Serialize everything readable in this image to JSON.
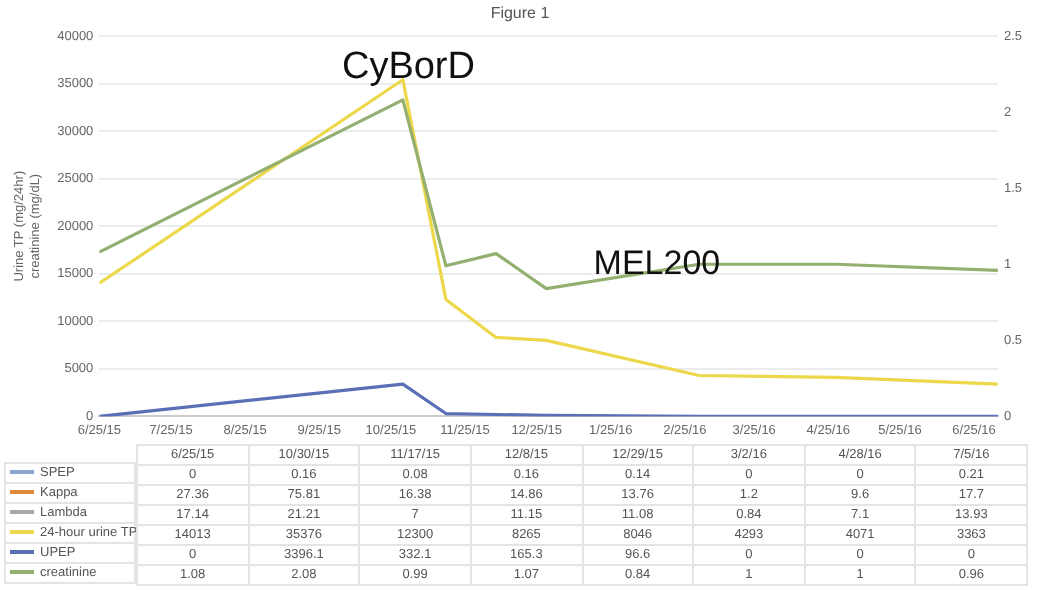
{
  "chart_data": [
    {
      "type": "line",
      "title": "Figure 1",
      "ylabel": "Urine TP (mg/24hr)\ncreatinine (mg/dL)",
      "x": [
        "2015-06-25",
        "2015-10-30",
        "2015-11-17",
        "2015-12-08",
        "2015-12-29",
        "2016-03-02",
        "2016-04-28",
        "2016-07-05"
      ],
      "series": [
        {
          "name": "SPEP",
          "color": "#8ea6cf",
          "values": [
            null,
            null,
            null,
            null,
            null,
            null,
            null,
            null
          ]
        },
        {
          "name": "Kappa",
          "color": "#e0893a",
          "values": [
            null,
            null,
            null,
            null,
            null,
            null,
            null,
            null
          ]
        },
        {
          "name": "Lambda",
          "color": "#a8a8a8",
          "values": [
            null,
            null,
            null,
            null,
            null,
            null,
            null,
            null
          ]
        },
        {
          "name": "24-hour urine TP",
          "color": "#ecd84a",
          "values": [
            14000,
            35400,
            12300,
            8300,
            8000,
            4300,
            4100,
            3400
          ]
        },
        {
          "name": "UPEP",
          "color": "#5a6fb5",
          "values": [
            0,
            3400,
            300,
            200,
            100,
            0,
            0,
            0
          ]
        },
        {
          "name": "creatinine",
          "color": "#93b070",
          "axis": "y2",
          "values": [
            1.08,
            2.08,
            0.99,
            1.07,
            0.84,
            1,
            1,
            0.96
          ]
        }
      ],
      "xlim": [
        "2015-06-25",
        "2016-07-05"
      ],
      "xticks": [
        {
          "value": "2015-06-25",
          "label": "6/25/15"
        },
        {
          "value": "2015-07-25",
          "label": "7/25/15"
        },
        {
          "value": "2015-08-25",
          "label": "8/25/15"
        },
        {
          "value": "2015-09-25",
          "label": "9/25/15"
        },
        {
          "value": "2015-10-25",
          "label": "10/25/15"
        },
        {
          "value": "2015-11-25",
          "label": "11/25/15"
        },
        {
          "value": "2015-12-25",
          "label": "12/25/15"
        },
        {
          "value": "2016-01-25",
          "label": "1/25/16"
        },
        {
          "value": "2016-02-25",
          "label": "2/25/16"
        },
        {
          "value": "2016-03-25",
          "label": "3/25/16"
        },
        {
          "value": "2016-04-25",
          "label": "4/25/16"
        },
        {
          "value": "2016-05-25",
          "label": "5/25/16"
        },
        {
          "value": "2016-06-25",
          "label": "6/25/16"
        }
      ],
      "ylim": [
        0,
        40000
      ],
      "yticks": [
        0,
        5000,
        10000,
        15000,
        20000,
        25000,
        30000,
        35000,
        40000
      ],
      "y2lim": [
        0,
        2.5
      ],
      "y2ticks": [
        0,
        0.5,
        1,
        1.5,
        2,
        2.5
      ],
      "grid": "y",
      "legend": "bottom",
      "marker": "none",
      "line_style": "solid",
      "annotations": [
        "CyBorD",
        "MEL200"
      ]
    },
    {
      "type": "other",
      "categories": [
        "6/25/15",
        "10/30/15",
        "11/17/15",
        "12/8/15",
        "12/29/15",
        "3/2/16",
        "4/28/16",
        "7/5/16"
      ],
      "data_labels": true,
      "series": [
        {
          "values": [
            0,
            0.16,
            0.08,
            0.16,
            0.14,
            0,
            0,
            0.21
          ]
        },
        {
          "values": [
            27.36,
            75.81,
            16.38,
            14.86,
            13.76,
            1.2,
            9.6,
            17.7
          ]
        },
        {
          "values": [
            17.14,
            21.21,
            7,
            11.15,
            11.08,
            0.84,
            7.1,
            13.93
          ]
        },
        {
          "values": [
            14013,
            35376,
            12300,
            8265,
            8046,
            4293,
            4071,
            3363
          ]
        },
        {
          "values": [
            0,
            3396.1,
            332.1,
            165.3,
            96.6,
            0,
            0,
            0
          ]
        },
        {
          "values": [
            1.08,
            2.08,
            0.99,
            1.07,
            0.84,
            1,
            1,
            0.96
          ]
        }
      ]
    }
  ]
}
